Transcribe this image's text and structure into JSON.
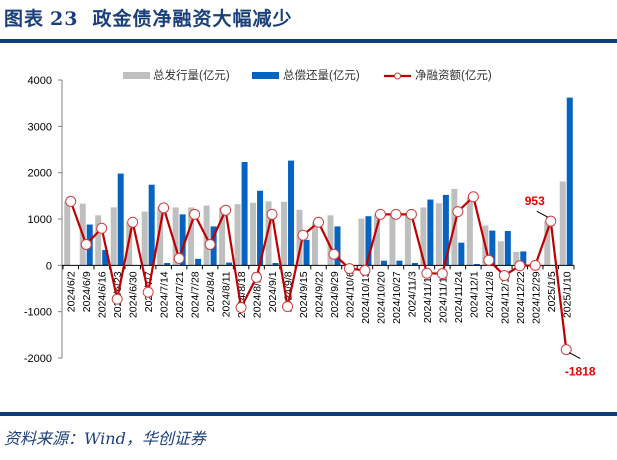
{
  "header": {
    "figure_label": "图表",
    "figure_number": "23",
    "title": "政金债净融资大幅减少"
  },
  "footer": {
    "source": "资料来源：Wind，华创证券"
  },
  "colors": {
    "gross_issuance": "#bfbfbf",
    "repayment": "#0563c1",
    "net_financing": "#c00000",
    "title": "#1b3f7a",
    "rule": "#0e3d7e",
    "annotation": "#e60000"
  },
  "chart_data": {
    "type": "bar",
    "title": "政金债净融资大幅减少",
    "xlabel": "",
    "ylabel": "",
    "ylim": [
      -2000,
      4000
    ],
    "yticks": [
      -2000,
      -1000,
      0,
      1000,
      2000,
      3000,
      4000
    ],
    "grid": false,
    "legend_position": "top",
    "categories": [
      "2024/6/2",
      "2024/6/9",
      "2024/6/16",
      "2024/6/23",
      "2024/6/30",
      "2024/7/7",
      "2024/7/14",
      "2024/7/21",
      "2024/7/28",
      "2024/8/4",
      "2024/8/11",
      "2024/8/18",
      "2024/8/25",
      "2024/9/1",
      "2024/9/8",
      "2024/9/15",
      "2024/9/22",
      "2024/9/29",
      "2024/10/6",
      "2024/10/13",
      "2024/10/20",
      "2024/10/27",
      "2024/11/3",
      "2024/11/10",
      "2024/11/17",
      "2024/11/24",
      "2024/12/1",
      "2024/12/8",
      "2024/12/15",
      "2024/12/22",
      "2024/12/29",
      "2025/1/5",
      "2025/1/10"
    ],
    "series": [
      {
        "name": "总发行量(亿元)",
        "type": "bar",
        "values": [
          1380,
          1330,
          1080,
          1250,
          930,
          1160,
          1250,
          1250,
          1250,
          1290,
          1250,
          1320,
          1350,
          1380,
          1370,
          1200,
          930,
          1080,
          0,
          1010,
          1100,
          1100,
          1130,
          1250,
          1340,
          1650,
          1480,
          860,
          520,
          290,
          0,
          950,
          1810
        ]
      },
      {
        "name": "总偿还量(亿元)",
        "type": "bar",
        "values": [
          0,
          880,
          330,
          1980,
          0,
          1740,
          50,
          1100,
          140,
          840,
          60,
          2230,
          1610,
          50,
          2260,
          550,
          0,
          840,
          0,
          1060,
          100,
          100,
          50,
          1420,
          1520,
          490,
          30,
          750,
          740,
          300,
          0,
          0,
          3620
        ]
      },
      {
        "name": "净融资额(亿元)",
        "type": "line",
        "values": [
          1380,
          450,
          800,
          -730,
          930,
          -580,
          1240,
          150,
          1100,
          450,
          1190,
          -910,
          -260,
          1100,
          -890,
          650,
          930,
          240,
          -70,
          -110,
          1100,
          1100,
          1100,
          -170,
          -180,
          1160,
          1480,
          110,
          -220,
          -10,
          0,
          953,
          -1818
        ]
      }
    ],
    "annotations": [
      {
        "category": "2025/1/5",
        "series": "净融资额(亿元)",
        "text": "953"
      },
      {
        "category": "2025/1/10",
        "series": "净融资额(亿元)",
        "text": "-1818"
      }
    ]
  }
}
